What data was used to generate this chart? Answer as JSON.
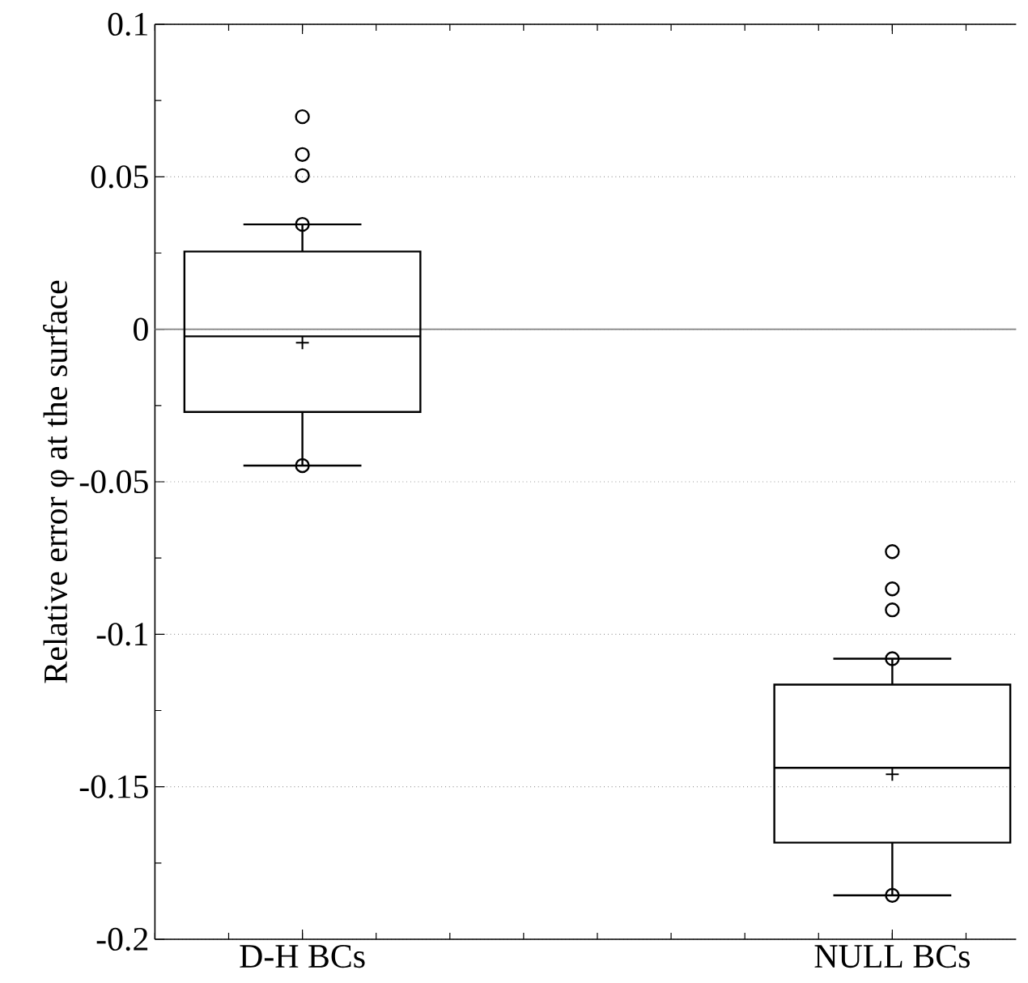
{
  "chart_data": {
    "type": "box",
    "ylabel": "Relative error φ at the surface",
    "categories": [
      "D-H BCs",
      "NULL BCs"
    ],
    "boxes": [
      {
        "low": -0.0447,
        "q1": -0.0271,
        "median": -0.0023,
        "q3": 0.0255,
        "high": 0.0344,
        "mean": -0.0044,
        "outliers": [
          0.0697,
          0.0573,
          0.0504,
          0.0344,
          -0.0447
        ]
      },
      {
        "low": -0.1856,
        "q1": -0.1683,
        "median": -0.1438,
        "q3": -0.1165,
        "high": -0.108,
        "mean": -0.1459,
        "outliers": [
          -0.0729,
          -0.0851,
          -0.092,
          -0.108,
          -0.1856
        ]
      }
    ],
    "color": "#000000",
    "marker": "circle",
    "ylim": [
      -0.2,
      0.1
    ],
    "yticks": [
      -0.2,
      -0.15,
      -0.1,
      -0.05,
      0,
      0.05,
      0.1
    ],
    "grid": "y",
    "ref_lines": [
      {
        "axis": "y",
        "value": 0,
        "color": "#808080"
      }
    ]
  }
}
